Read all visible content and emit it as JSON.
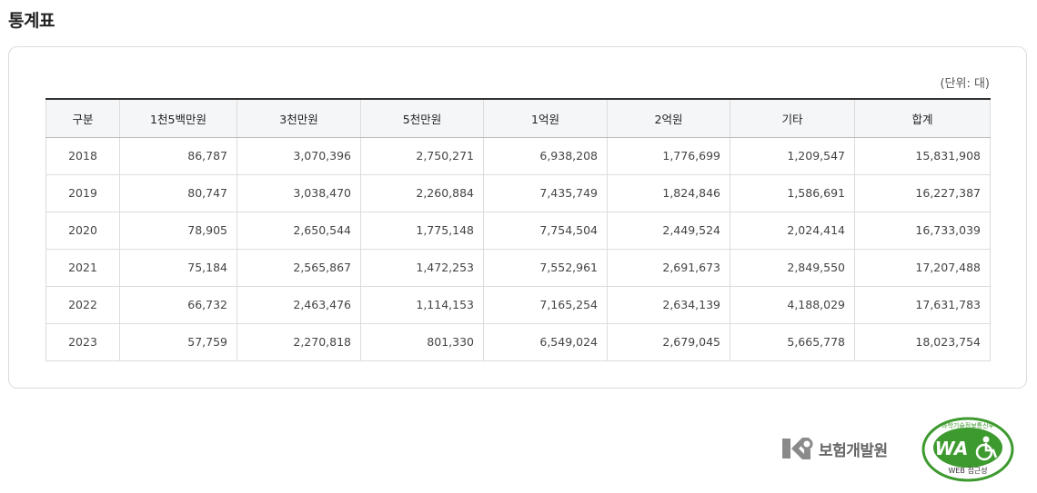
{
  "page": {
    "title": "통계표"
  },
  "table": {
    "unit": "(단위: 대)",
    "columns": [
      "구분",
      "1천5백만원",
      "3천만원",
      "5천만원",
      "1억원",
      "2억원",
      "기타",
      "합계"
    ],
    "rows": [
      [
        "2018",
        "86,787",
        "3,070,396",
        "2,750,271",
        "6,938,208",
        "1,776,699",
        "1,209,547",
        "15,831,908"
      ],
      [
        "2019",
        "80,747",
        "3,038,470",
        "2,260,884",
        "7,435,749",
        "1,824,846",
        "1,586,691",
        "16,227,387"
      ],
      [
        "2020",
        "78,905",
        "2,650,544",
        "1,775,148",
        "7,754,504",
        "2,449,524",
        "2,024,414",
        "16,733,039"
      ],
      [
        "2021",
        "75,184",
        "2,565,867",
        "1,472,253",
        "7,552,961",
        "2,691,673",
        "2,849,550",
        "17,207,488"
      ],
      [
        "2022",
        "66,732",
        "2,463,476",
        "1,114,153",
        "7,165,254",
        "2,634,139",
        "4,188,029",
        "17,631,783"
      ],
      [
        "2023",
        "57,759",
        "2,270,818",
        "801,330",
        "6,549,024",
        "2,679,045",
        "5,665,778",
        "18,023,754"
      ]
    ]
  },
  "footer": {
    "org_name": "보험개발원",
    "badge_top": "과학기술정보통신부",
    "badge_mark": "WA",
    "badge_bottom": "WEB 접근성"
  },
  "colors": {
    "header_bg": "#f5f6f8",
    "border": "#dcdcdc",
    "badge_green": "#3d9a2e"
  },
  "icons": [
    "kidi-logo-icon",
    "web-accessibility-badge-icon"
  ]
}
